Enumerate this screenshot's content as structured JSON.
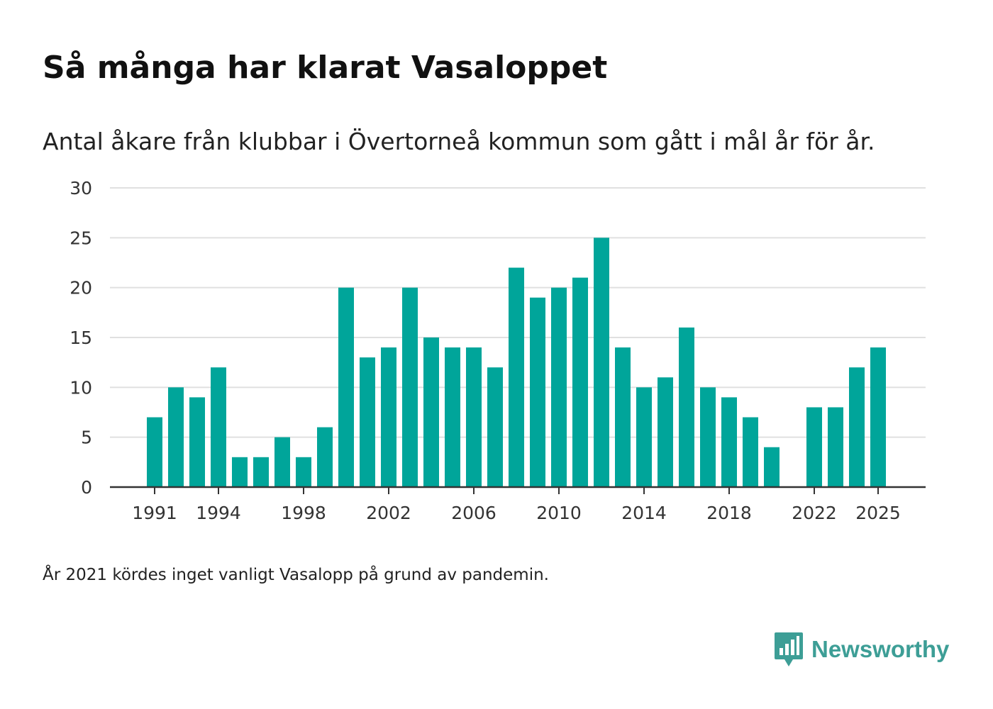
{
  "header": {
    "title": "Så många har klarat Vasaloppet",
    "subtitle": "Antal åkare från klubbar i Övertorneå kommun som gått i mål år för år."
  },
  "footer": {
    "note": "År 2021 kördes inget vanligt Vasalopp på grund av pandemin.",
    "brand_name": "Newsworthy",
    "brand_icon": "bar-chart-speech-bubble-icon"
  },
  "colors": {
    "bar": "#00a59a",
    "grid": "#e0e0e0",
    "axis": "#333333",
    "text": "#333333",
    "brand": "#3d9e96"
  },
  "chart_data": {
    "type": "bar",
    "title": "Så många har klarat Vasaloppet",
    "subtitle": "Antal åkare från klubbar i Övertorneå kommun som gått i mål år för år.",
    "xlabel": "",
    "ylabel": "",
    "ylim": [
      0,
      30
    ],
    "yticks": [
      0,
      5,
      10,
      15,
      20,
      25,
      30
    ],
    "xticks": [
      1991,
      1994,
      1998,
      2002,
      2006,
      2010,
      2014,
      2018,
      2022,
      2025
    ],
    "grid": true,
    "categories": [
      1991,
      1992,
      1993,
      1994,
      1995,
      1996,
      1997,
      1998,
      1999,
      2000,
      2001,
      2002,
      2003,
      2004,
      2005,
      2006,
      2007,
      2008,
      2009,
      2010,
      2011,
      2012,
      2013,
      2014,
      2015,
      2016,
      2017,
      2018,
      2019,
      2020,
      2022,
      2023,
      2024,
      2025
    ],
    "values": [
      7,
      10,
      9,
      12,
      3,
      3,
      5,
      3,
      6,
      20,
      13,
      14,
      20,
      15,
      14,
      14,
      12,
      22,
      19,
      20,
      21,
      25,
      14,
      10,
      11,
      16,
      10,
      9,
      7,
      4,
      8,
      8,
      12,
      14
    ]
  }
}
